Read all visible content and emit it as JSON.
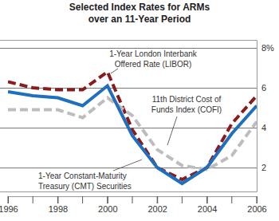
{
  "chart_data": {
    "type": "line",
    "title": "Selected Index Rates for ARMs over an 11-Year Period",
    "x": [
      1996,
      1997,
      1998,
      1999,
      2000,
      2001,
      2002,
      2003,
      2004,
      2005,
      2006
    ],
    "xlim": [
      1996,
      2006
    ],
    "xticks": [
      1996,
      1998,
      2000,
      2002,
      2004,
      2006
    ],
    "ylim": [
      0.8,
      8.4
    ],
    "yticks": [
      2,
      4,
      6,
      {
        "value": 8,
        "label": "8%"
      }
    ],
    "grid": true,
    "series": [
      {
        "name": "1-Year London Interbank Offered Rate (LIBOR)",
        "color": "#8b1a1a",
        "line_style": "dashed",
        "values": [
          6.3,
          6.0,
          5.9,
          5.9,
          6.8,
          3.9,
          2.0,
          1.4,
          2.0,
          4.2,
          5.6
        ]
      },
      {
        "name": "11th District Cost of Funds Index (COFI)",
        "color": "#bdbdbd",
        "line_style": "dashed",
        "values": [
          4.9,
          4.9,
          4.9,
          4.5,
          5.5,
          4.6,
          2.9,
          2.1,
          1.9,
          2.6,
          4.3
        ]
      },
      {
        "name": "1-Year Constant-Maturity Treasury (CMT) Securities",
        "color": "#1f6fbf",
        "line_style": "solid",
        "values": [
          5.8,
          5.6,
          5.5,
          5.1,
          6.1,
          3.6,
          2.0,
          1.2,
          2.0,
          3.7,
          5.1
        ]
      }
    ]
  }
}
